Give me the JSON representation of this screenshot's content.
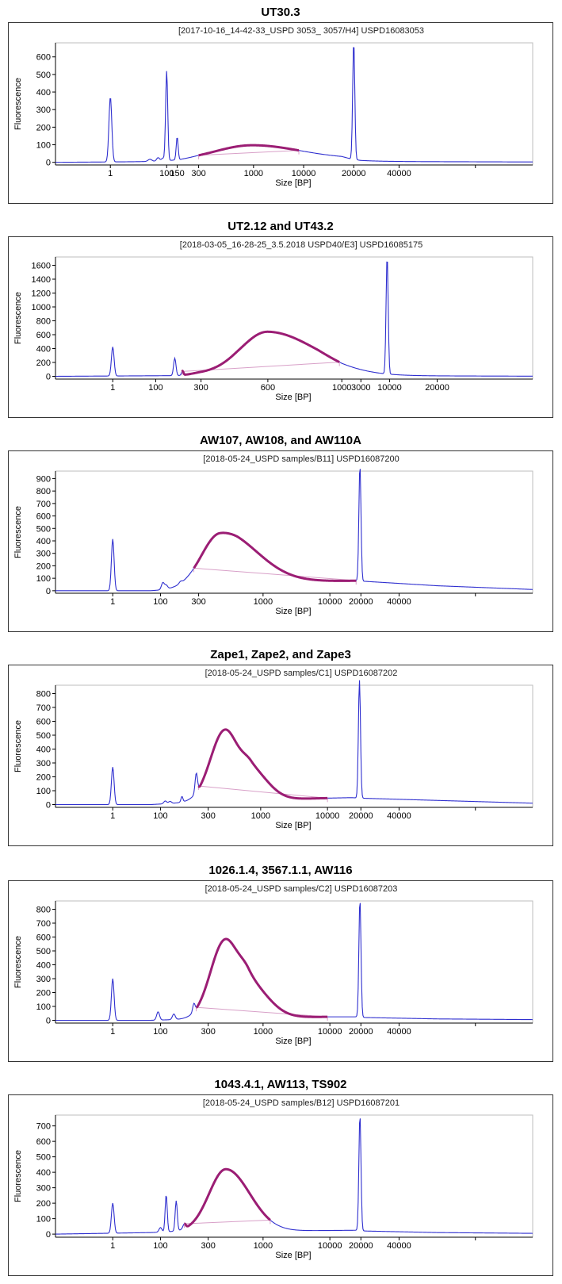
{
  "chart_data": [
    {
      "type": "line",
      "title": "UT30.3",
      "subtitle": "[2017-10-16_14-42-33_USPD 3053_ 3057/H4] USPD16083053",
      "xlabel": "Size [BP]",
      "ylabel": "Fluorescence",
      "yticks": [
        0,
        100,
        200,
        300,
        400,
        500,
        600
      ],
      "ylim": [
        -15,
        680
      ],
      "xticks": [
        "1",
        "100",
        "150",
        "300",
        "1000",
        "10000",
        "20000",
        "40000"
      ],
      "peaks": [
        {
          "pos": 0.115,
          "h": 370,
          "w": 0.003
        },
        {
          "pos": 0.233,
          "h": 510,
          "w": 0.0022
        },
        {
          "pos": 0.255,
          "h": 130,
          "w": 0.002
        },
        {
          "pos": 0.225,
          "h": 15,
          "w": 0.003
        },
        {
          "pos": 0.215,
          "h": 20,
          "w": 0.003
        },
        {
          "pos": 0.198,
          "h": 12,
          "w": 0.004
        },
        {
          "pos": 0.625,
          "h": 670,
          "w": 0.0022
        }
      ],
      "humps": [
        {
          "pos": 0.41,
          "h": 82,
          "wl": 0.075,
          "wr": 0.1
        }
      ],
      "baseline": [
        [
          0,
          0
        ],
        [
          0.26,
          5
        ],
        [
          0.3,
          12
        ],
        [
          0.51,
          18
        ],
        [
          0.6,
          20
        ],
        [
          0.62,
          10
        ],
        [
          0.64,
          5
        ],
        [
          1,
          2
        ]
      ],
      "region": [
        0.3,
        0.51
      ],
      "ladder": [
        [
          0.115,
          0
        ],
        [
          0.233,
          1
        ],
        [
          0.255,
          2
        ],
        [
          0.3,
          3
        ],
        [
          0.415,
          4
        ],
        [
          0.52,
          5
        ],
        [
          0.625,
          6
        ],
        [
          0.72,
          7
        ],
        [
          0.88,
          8
        ]
      ]
    },
    {
      "type": "line",
      "title": "UT2.12 and UT43.2",
      "subtitle": "[2018-03-05_16-28-25_3.5.2018 USPD40/E3] USPD16085175",
      "xlabel": "Size [BP]",
      "ylabel": "Fluorescence",
      "yticks": [
        0,
        200,
        400,
        600,
        800,
        1000,
        1200,
        1400,
        1600
      ],
      "ylim": [
        -40,
        1720
      ],
      "xticks": [
        "1",
        "100",
        "300",
        "600",
        "1000",
        "3000",
        "10000",
        "20000"
      ],
      "peaks": [
        {
          "pos": 0.12,
          "h": 420,
          "w": 0.0028
        },
        {
          "pos": 0.25,
          "h": 250,
          "w": 0.0025
        },
        {
          "pos": 0.266,
          "h": 60,
          "w": 0.002
        },
        {
          "pos": 0.695,
          "h": 1700,
          "w": 0.0022
        }
      ],
      "humps": [
        {
          "pos": 0.445,
          "h": 590,
          "wl": 0.055,
          "wr": 0.1
        }
      ],
      "baseline": [
        [
          0,
          0
        ],
        [
          0.26,
          10
        ],
        [
          0.3,
          40
        ],
        [
          0.38,
          60
        ],
        [
          0.55,
          40
        ],
        [
          0.6,
          10
        ],
        [
          1,
          2
        ]
      ],
      "region": [
        0.265,
        0.595
      ],
      "ladder": [
        [
          0.12,
          0
        ],
        [
          0.21,
          1
        ],
        [
          0.305,
          2
        ],
        [
          0.445,
          3
        ],
        [
          0.6,
          4
        ],
        [
          0.64,
          5
        ],
        [
          0.7,
          6
        ],
        [
          0.8,
          7
        ]
      ]
    },
    {
      "type": "line",
      "title": "AW107, AW108, and AW110A",
      "subtitle": "[2018-05-24_USPD samples/B11] USPD16087200",
      "xlabel": "Size [BP]",
      "ylabel": "Fluorescence",
      "yticks": [
        0,
        100,
        200,
        300,
        400,
        500,
        600,
        700,
        800,
        900
      ],
      "ylim": [
        -20,
        960
      ],
      "xticks": [
        "1",
        "100",
        "300",
        "1000",
        "10000",
        "20000",
        "40000"
      ],
      "peaks": [
        {
          "pos": 0.12,
          "h": 415,
          "w": 0.0028
        },
        {
          "pos": 0.225,
          "h": 55,
          "w": 0.003
        },
        {
          "pos": 0.232,
          "h": 30,
          "w": 0.003
        },
        {
          "pos": 0.262,
          "h": 15,
          "w": 0.003
        },
        {
          "pos": 0.638,
          "h": 930,
          "w": 0.0022
        }
      ],
      "humps": [
        {
          "pos": 0.345,
          "h": 420,
          "wl": 0.04,
          "wr": 0.075
        }
      ],
      "baseline": [
        [
          0,
          0
        ],
        [
          0.2,
          0
        ],
        [
          0.3,
          20
        ],
        [
          0.38,
          60
        ],
        [
          0.48,
          68
        ],
        [
          0.55,
          75
        ],
        [
          0.63,
          80
        ],
        [
          0.65,
          75
        ],
        [
          0.8,
          40
        ],
        [
          1,
          10
        ]
      ],
      "region": [
        0.29,
        0.63
      ],
      "ladder": [
        [
          0.12,
          0
        ],
        [
          0.22,
          1
        ],
        [
          0.3,
          2
        ],
        [
          0.435,
          3
        ],
        [
          0.575,
          4
        ],
        [
          0.64,
          5
        ],
        [
          0.72,
          6
        ],
        [
          0.88,
          7
        ]
      ]
    },
    {
      "type": "line",
      "title": "Zape1, Zape2, and Zape3",
      "subtitle": "[2018-05-24_USPD samples/C1] USPD16087202",
      "xlabel": "Size [BP]",
      "ylabel": "Fluorescence",
      "yticks": [
        0,
        100,
        200,
        300,
        400,
        500,
        600,
        700,
        800
      ],
      "ylim": [
        -20,
        860
      ],
      "xticks": [
        "1",
        "100",
        "300",
        "1000",
        "10000",
        "20000",
        "40000"
      ],
      "peaks": [
        {
          "pos": 0.12,
          "h": 270,
          "w": 0.0028
        },
        {
          "pos": 0.23,
          "h": 20,
          "w": 0.003
        },
        {
          "pos": 0.24,
          "h": 15,
          "w": 0.003
        },
        {
          "pos": 0.265,
          "h": 40,
          "w": 0.002
        },
        {
          "pos": 0.295,
          "h": 140,
          "w": 0.0025
        },
        {
          "pos": 0.637,
          "h": 850,
          "w": 0.0022
        }
      ],
      "humps": [
        {
          "pos": 0.355,
          "h": 510,
          "wl": 0.03,
          "wr": 0.028
        },
        {
          "pos": 0.41,
          "h": 210,
          "wl": 0.02,
          "wr": 0.035
        }
      ],
      "baseline": [
        [
          0,
          0
        ],
        [
          0.2,
          0
        ],
        [
          0.3,
          20
        ],
        [
          0.45,
          35
        ],
        [
          0.55,
          45
        ],
        [
          0.62,
          50
        ],
        [
          0.65,
          45
        ],
        [
          0.8,
          30
        ],
        [
          1,
          10
        ]
      ],
      "region": [
        0.3,
        0.57
      ],
      "ladder": [
        [
          0.12,
          0
        ],
        [
          0.22,
          1
        ],
        [
          0.32,
          2
        ],
        [
          0.43,
          3
        ],
        [
          0.57,
          4
        ],
        [
          0.64,
          5
        ],
        [
          0.72,
          6
        ],
        [
          0.88,
          7
        ]
      ]
    },
    {
      "type": "line",
      "title": "1026.1.4, 3567.1.1, AW116",
      "subtitle": "[2018-05-24_USPD samples/C2] USPD16087203",
      "xlabel": "Size [BP]",
      "ylabel": "Fluorescence",
      "yticks": [
        0,
        100,
        200,
        300,
        400,
        500,
        600,
        700,
        800
      ],
      "ylim": [
        -20,
        860
      ],
      "xticks": [
        "1",
        "100",
        "300",
        "1000",
        "10000",
        "20000",
        "40000"
      ],
      "peaks": [
        {
          "pos": 0.12,
          "h": 300,
          "w": 0.0028
        },
        {
          "pos": 0.215,
          "h": 60,
          "w": 0.003
        },
        {
          "pos": 0.248,
          "h": 40,
          "w": 0.003
        },
        {
          "pos": 0.29,
          "h": 60,
          "w": 0.0025
        },
        {
          "pos": 0.638,
          "h": 850,
          "w": 0.0022
        }
      ],
      "humps": [
        {
          "pos": 0.355,
          "h": 560,
          "wl": 0.03,
          "wr": 0.028
        },
        {
          "pos": 0.405,
          "h": 240,
          "wl": 0.02,
          "wr": 0.04
        }
      ],
      "baseline": [
        [
          0,
          0
        ],
        [
          0.2,
          0
        ],
        [
          0.3,
          10
        ],
        [
          0.45,
          20
        ],
        [
          0.57,
          25
        ],
        [
          0.63,
          25
        ],
        [
          0.65,
          20
        ],
        [
          0.8,
          10
        ],
        [
          1,
          5
        ]
      ],
      "region": [
        0.295,
        0.57
      ],
      "ladder": [
        [
          0.12,
          0
        ],
        [
          0.22,
          1
        ],
        [
          0.32,
          2
        ],
        [
          0.435,
          3
        ],
        [
          0.575,
          4
        ],
        [
          0.64,
          5
        ],
        [
          0.72,
          6
        ],
        [
          0.88,
          7
        ]
      ]
    },
    {
      "type": "line",
      "title": "1043.4.1, AW113, TS902",
      "subtitle": "[2018-05-24_USPD samples/B12] USPD16087201",
      "xlabel": "Size [BP]",
      "ylabel": "Fluorescence",
      "yticks": [
        0,
        100,
        200,
        300,
        400,
        500,
        600,
        700
      ],
      "ylim": [
        -20,
        770
      ],
      "xticks": [
        "1",
        "100",
        "300",
        "1000",
        "10000",
        "20000",
        "40000"
      ],
      "peaks": [
        {
          "pos": 0.12,
          "h": 195,
          "w": 0.0028
        },
        {
          "pos": 0.22,
          "h": 30,
          "w": 0.003
        },
        {
          "pos": 0.232,
          "h": 240,
          "w": 0.0022
        },
        {
          "pos": 0.253,
          "h": 195,
          "w": 0.0022
        },
        {
          "pos": 0.27,
          "h": 30,
          "w": 0.003
        },
        {
          "pos": 0.638,
          "h": 750,
          "w": 0.0022
        }
      ],
      "humps": [
        {
          "pos": 0.357,
          "h": 400,
          "wl": 0.035,
          "wr": 0.05
        }
      ],
      "baseline": [
        [
          0,
          0
        ],
        [
          0.2,
          10
        ],
        [
          0.28,
          20
        ],
        [
          0.45,
          20
        ],
        [
          0.63,
          25
        ],
        [
          0.65,
          20
        ],
        [
          0.8,
          10
        ],
        [
          1,
          5
        ]
      ],
      "region": [
        0.27,
        0.45
      ],
      "ladder": [
        [
          0.12,
          0
        ],
        [
          0.22,
          1
        ],
        [
          0.32,
          2
        ],
        [
          0.435,
          3
        ],
        [
          0.575,
          4
        ],
        [
          0.64,
          5
        ],
        [
          0.72,
          6
        ],
        [
          0.88,
          7
        ]
      ]
    }
  ]
}
